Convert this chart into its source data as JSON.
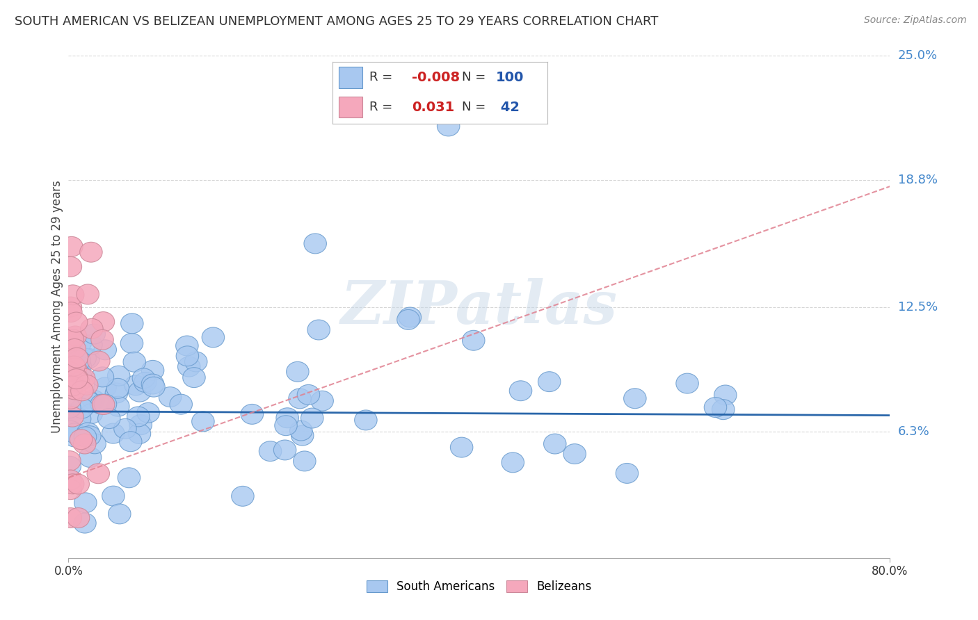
{
  "title": "SOUTH AMERICAN VS BELIZEAN UNEMPLOYMENT AMONG AGES 25 TO 29 YEARS CORRELATION CHART",
  "source": "Source: ZipAtlas.com",
  "ylabel": "Unemployment Among Ages 25 to 29 years",
  "xlim": [
    0.0,
    0.8
  ],
  "ylim": [
    0.0,
    0.25
  ],
  "ytick_vals": [
    0.0,
    0.063,
    0.125,
    0.188,
    0.25
  ],
  "ytick_labels": [
    "",
    "6.3%",
    "12.5%",
    "18.8%",
    "25.0%"
  ],
  "r_sa": "-0.008",
  "n_sa": "100",
  "r_bz": "0.031",
  "n_bz": "42",
  "color_sa_fill": "#a8c8f0",
  "color_sa_edge": "#6699cc",
  "color_bz_fill": "#f5a8bc",
  "color_bz_edge": "#cc8899",
  "trendline_sa_color": "#1f5fa6",
  "trendline_bz_color": "#e08090",
  "grid_color": "#cccccc",
  "background_color": "#ffffff",
  "watermark_text": "ZIPatlas",
  "watermark_color": "#c8d8e8",
  "legend_label_sa": "South Americans",
  "legend_label_bz": "Belizeans",
  "title_color": "#333333",
  "source_color": "#888888",
  "ylabel_color": "#444444",
  "ytick_label_color": "#4488cc",
  "xtick_label_color": "#333333",
  "sa_trendline_y0": 0.073,
  "sa_trendline_y1": 0.071,
  "bz_trendline_y0": 0.04,
  "bz_trendline_y1": 0.185
}
